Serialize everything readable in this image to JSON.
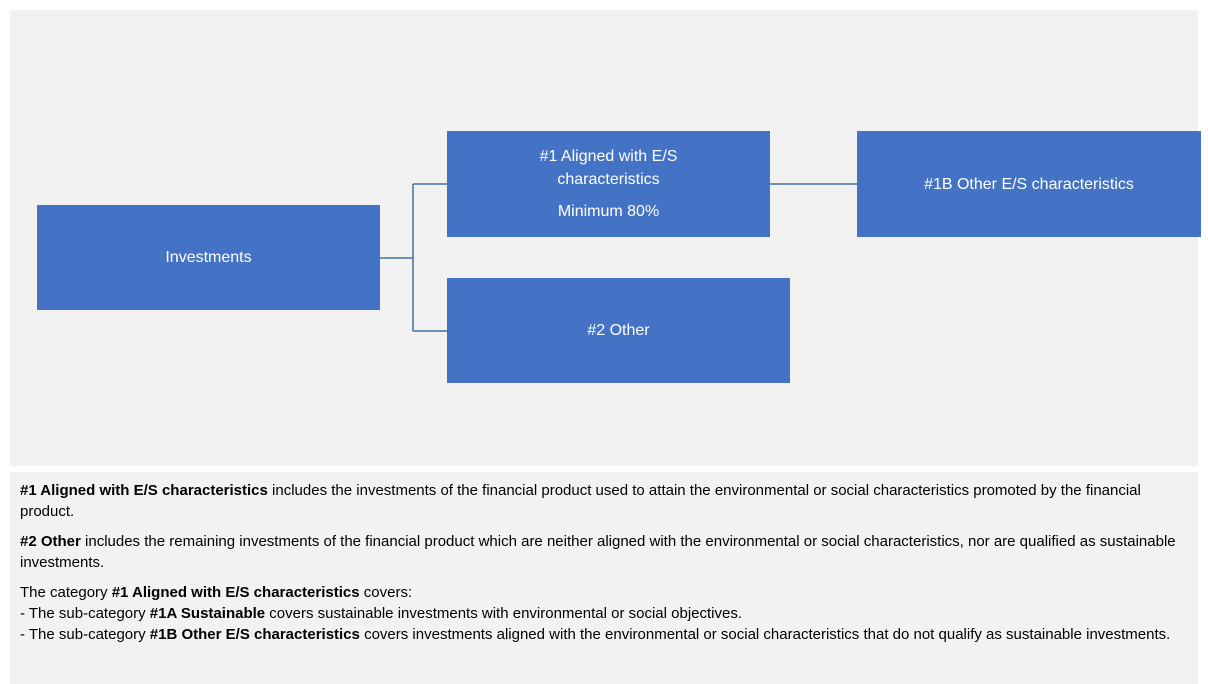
{
  "nodes": [
    {
      "label": "Investments"
    },
    {
      "label": "#1 Aligned with E/S characteristics",
      "sublabel": "Minimum 80%"
    },
    {
      "label": "#1B Other E/S characteristics"
    },
    {
      "label": "#2 Other"
    }
  ],
  "notes": [
    {
      "runs": [
        {
          "text": "#1 Aligned with E/S characteristics",
          "bold": true
        },
        {
          "text": " includes the investments of the financial product used to attain the environmental or social characteristics promoted by the financial product.",
          "bold": false
        }
      ]
    },
    {
      "runs": [
        {
          "text": "#2 Other",
          "bold": true
        },
        {
          "text": " includes the remaining investments of the financial product which are neither aligned with the environmental or social characteristics, nor are qualified as sustainable investments.",
          "bold": false
        }
      ]
    },
    {
      "runs": [
        {
          "text": "The category ",
          "bold": false
        },
        {
          "text": "#1 Aligned with E/S characteristics",
          "bold": true
        },
        {
          "text": " covers:",
          "bold": false
        }
      ]
    },
    {
      "runs": [
        {
          "text": "- The sub-category ",
          "bold": false
        },
        {
          "text": "#1A Sustainable",
          "bold": true
        },
        {
          "text": " covers sustainable investments with environmental or social objectives.",
          "bold": false
        }
      ]
    },
    {
      "runs": [
        {
          "text": "- The sub-category ",
          "bold": false
        },
        {
          "text": "#1B Other E/S characteristics",
          "bold": true
        },
        {
          "text": " covers investments aligned with the environmental or social characteristics that do not qualify as sustainable investments.",
          "bold": false
        }
      ]
    }
  ]
}
